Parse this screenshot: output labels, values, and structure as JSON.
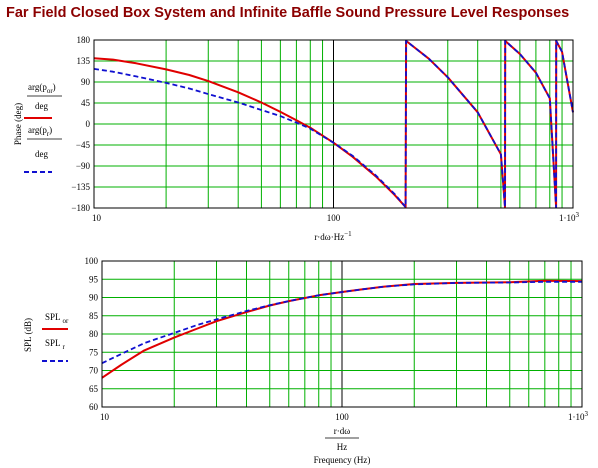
{
  "title": "Far Field Closed Box System and Infinite Baffle Sound Pressure Level Responses",
  "colors": {
    "title": "#8b0000",
    "grid": "#00b000",
    "red": "#e00000",
    "blue": "#1010d0"
  },
  "chart_data": [
    {
      "type": "line",
      "ylabel": "Phase (deg)",
      "xlabel_parts": {
        "main": "r·dω·Hz",
        "sup": "−1"
      },
      "xscale": "log",
      "xlim": [
        10,
        1000
      ],
      "ylim": [
        -180,
        180
      ],
      "xticks": [
        10,
        100,
        1000
      ],
      "xtick_labels": [
        "10",
        "100",
        "1·10",
        "3"
      ],
      "yticks": [
        180,
        135,
        90,
        45,
        0,
        -45,
        -90,
        -135,
        -180
      ],
      "ytick_labels": [
        "180",
        "135",
        "90",
        "45",
        "0",
        "−45",
        "−90",
        "−135",
        "−180"
      ],
      "grid": true,
      "legend": {
        "placement": "left",
        "entries": [
          {
            "top": "arg(p",
            "sub": "or",
            "close": ")",
            "bottom": "deg",
            "color": "#e00000",
            "dash": false
          },
          {
            "top": "arg(p",
            "sub": "r",
            "close": ")",
            "bottom": "deg",
            "color": "#1010d0",
            "dash": true
          }
        ]
      },
      "series": [
        {
          "color": "#e00000",
          "dash": false,
          "x": [
            10,
            12,
            15,
            20,
            25,
            30,
            40,
            50,
            60,
            70,
            80,
            100,
            120,
            150,
            180,
            200,
            201,
            250,
            300,
            400,
            500,
            520,
            521,
            600,
            700,
            800,
            850,
            851,
            900,
            1000
          ],
          "y": [
            141,
            138,
            130,
            117,
            105,
            92,
            68,
            46,
            26,
            8,
            -8,
            -40,
            -70,
            -112,
            -152,
            -178,
            178,
            140,
            100,
            25,
            -65,
            -178,
            178,
            150,
            110,
            55,
            -178,
            178,
            155,
            25
          ]
        },
        {
          "color": "#1010d0",
          "dash": true,
          "x": [
            10,
            12,
            15,
            20,
            25,
            30,
            40,
            50,
            60,
            70,
            80,
            100,
            120,
            150,
            180,
            200,
            201,
            250,
            300,
            400,
            500,
            520,
            521,
            600,
            700,
            800,
            850,
            851,
            900,
            1000
          ],
          "y": [
            118,
            112,
            102,
            88,
            76,
            64,
            46,
            30,
            17,
            3,
            -10,
            -40,
            -68,
            -110,
            -150,
            -178,
            178,
            140,
            100,
            25,
            -65,
            -178,
            178,
            150,
            110,
            55,
            -178,
            178,
            155,
            25
          ]
        }
      ]
    },
    {
      "type": "line",
      "ylabel": "SPL (dB)",
      "xlabel_parts": {
        "main": "r·dω",
        "den": "Hz",
        "caption": "Frequency (Hz)"
      },
      "xscale": "log",
      "xlim": [
        10,
        1000
      ],
      "ylim": [
        60,
        100
      ],
      "xticks": [
        10,
        100,
        1000
      ],
      "xtick_labels": [
        "10",
        "100",
        "1·10",
        "3"
      ],
      "yticks": [
        100,
        95,
        90,
        85,
        80,
        75,
        70,
        65,
        60
      ],
      "ytick_labels": [
        "100",
        "95",
        "90",
        "85",
        "80",
        "75",
        "70",
        "65",
        "60"
      ],
      "grid": true,
      "legend": {
        "placement": "left",
        "entries": [
          {
            "top": "SPL",
            "sub": "or",
            "color": "#e00000",
            "dash": false
          },
          {
            "top": "SPL",
            "sub": "r",
            "color": "#1010d0",
            "dash": true
          }
        ]
      },
      "series": [
        {
          "color": "#e00000",
          "dash": false,
          "x": [
            10,
            12,
            15,
            20,
            25,
            30,
            40,
            50,
            60,
            80,
            100,
            120,
            150,
            200,
            300,
            500,
            700,
            1000
          ],
          "y": [
            68,
            71.5,
            75.5,
            79,
            81.5,
            83.5,
            86,
            87.8,
            89,
            90.6,
            91.5,
            92.2,
            93,
            93.7,
            94,
            94.2,
            94.6,
            94.5
          ]
        },
        {
          "color": "#1010d0",
          "dash": true,
          "x": [
            10,
            12,
            15,
            20,
            25,
            30,
            40,
            50,
            60,
            80,
            100,
            120,
            150,
            200,
            300,
            500,
            700,
            1000
          ],
          "y": [
            72,
            74.5,
            77.5,
            80.3,
            82.5,
            84,
            86.3,
            87.9,
            89,
            90.6,
            91.5,
            92.2,
            93,
            93.6,
            94,
            94.1,
            94.3,
            94.3
          ]
        }
      ]
    }
  ]
}
